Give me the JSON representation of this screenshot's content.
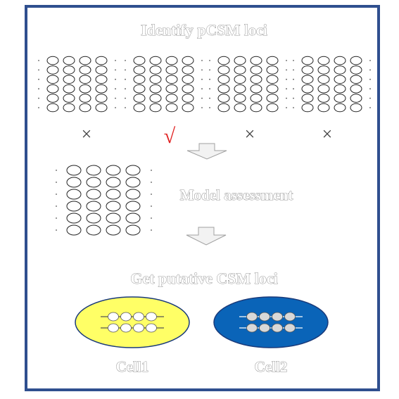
{
  "steps": {
    "identify_title": "Identify pCSM loci",
    "model_title": "Model assessment",
    "putative_title": "Get putative CSM loci"
  },
  "candidates": [
    {
      "rows": 6,
      "cols": 4,
      "mark": "×",
      "mark_color": "#444444"
    },
    {
      "rows": 6,
      "cols": 4,
      "mark": "√",
      "mark_color": "#e02020"
    },
    {
      "rows": 6,
      "cols": 4,
      "mark": "×",
      "mark_color": "#444444"
    },
    {
      "rows": 6,
      "cols": 4,
      "mark": "×",
      "mark_color": "#444444"
    }
  ],
  "model_grid": {
    "rows": 6,
    "cols": 4
  },
  "cells": [
    {
      "label": "Cell1",
      "fill": "#ffff66",
      "stroke": "#1a3a7a",
      "site_fill": "#ffffff",
      "line_color": "#555555"
    },
    {
      "label": "Cell2",
      "fill": "#0a64b8",
      "stroke": "#1a3a7a",
      "site_fill": "#d8d8d8",
      "line_color": "#ffffff"
    }
  ],
  "colors": {
    "frame": "#2f4f8f",
    "arrow_fill": "#f2f2f2",
    "arrow_stroke": "#a0a0a0"
  }
}
